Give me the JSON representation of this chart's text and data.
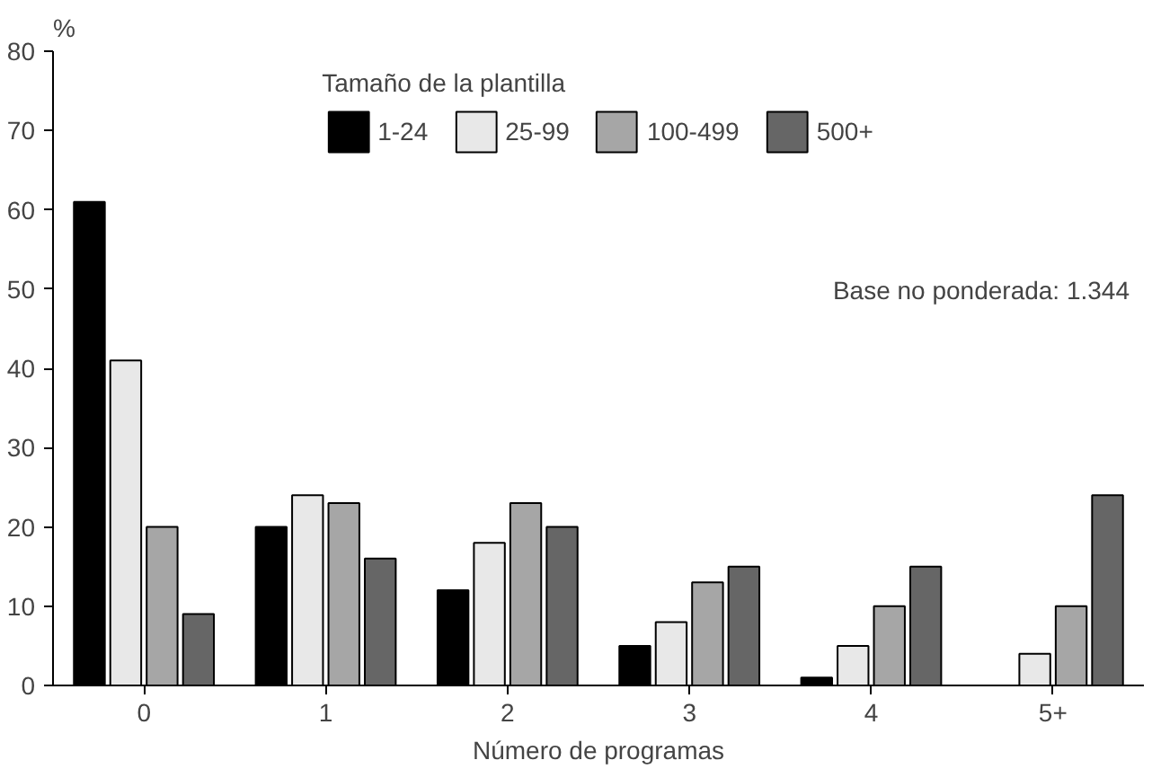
{
  "chart_data": {
    "type": "bar",
    "xlabel": "Número de programas",
    "ylabel": "%",
    "legend_title": "Tamaño de la plantilla",
    "categories": [
      "0",
      "1",
      "2",
      "3",
      "4",
      "5+"
    ],
    "series": [
      {
        "name": "1-24",
        "color": "#000000",
        "values": [
          61,
          20,
          12,
          5,
          1,
          0
        ]
      },
      {
        "name": "25-99",
        "color": "#e8e8e8",
        "values": [
          41,
          24,
          18,
          8,
          5,
          4
        ]
      },
      {
        "name": "100-499",
        "color": "#a6a6a6",
        "values": [
          20,
          23,
          23,
          13,
          10,
          10
        ]
      },
      {
        "name": "500+",
        "color": "#666666",
        "values": [
          9,
          16,
          20,
          15,
          15,
          24
        ]
      }
    ],
    "ylim": [
      0,
      80
    ],
    "yticks": [
      0,
      10,
      20,
      30,
      40,
      50,
      60,
      70,
      80
    ],
    "grid": false,
    "legend": "top",
    "annotations": [
      "Base no ponderada: 1.344"
    ]
  }
}
